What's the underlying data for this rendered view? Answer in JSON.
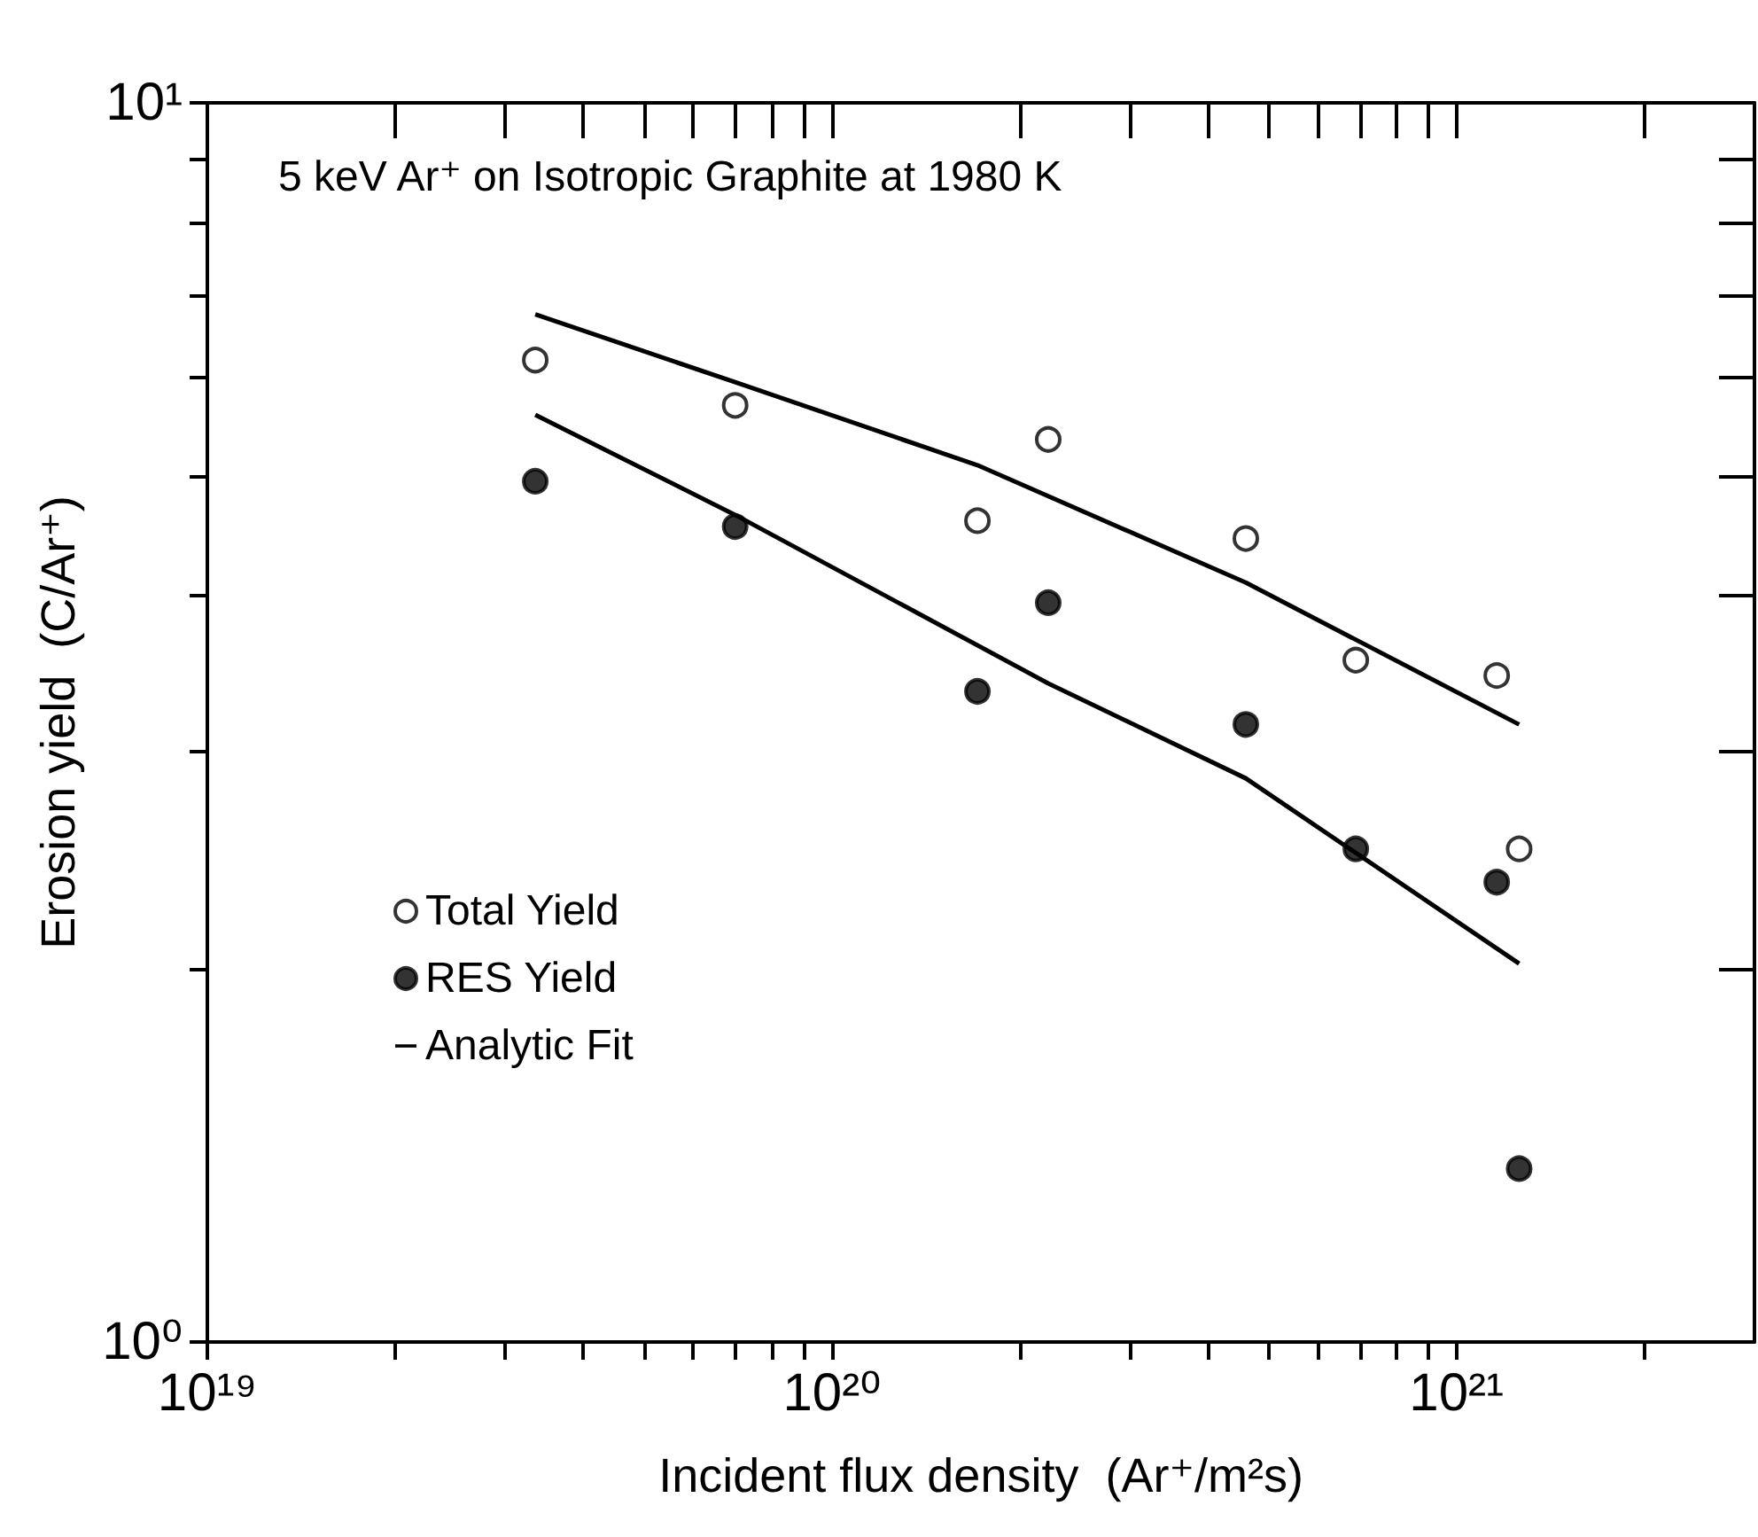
{
  "chart_data": {
    "type": "scatter",
    "xlabel": "Incident flux density  (Ar⁺/m²s)",
    "ylabel": "Erosion yield  (C/Ar⁺)",
    "annotations": [
      "5 keV Ar⁺ on Isotropic Graphite at 1980 K"
    ],
    "log": "xy",
    "xlim": [
      1e+19,
      3e+21
    ],
    "xticks": [
      {
        "value": 1e+19,
        "label": "10¹⁹"
      },
      {
        "value": 2e+19,
        "label": null
      },
      {
        "value": 3e+19,
        "label": null
      },
      {
        "value": 4e+19,
        "label": null
      },
      {
        "value": 5e+19,
        "label": null
      },
      {
        "value": 6e+19,
        "label": null
      },
      {
        "value": 7e+19,
        "label": null
      },
      {
        "value": 8e+19,
        "label": null
      },
      {
        "value": 9e+19,
        "label": null
      },
      {
        "value": 1e+20,
        "label": "10²⁰"
      },
      {
        "value": 2e+20,
        "label": null
      },
      {
        "value": 3e+20,
        "label": null
      },
      {
        "value": 4e+20,
        "label": null
      },
      {
        "value": 5e+20,
        "label": null
      },
      {
        "value": 6e+20,
        "label": null
      },
      {
        "value": 7e+20,
        "label": null
      },
      {
        "value": 8e+20,
        "label": null
      },
      {
        "value": 9e+20,
        "label": null
      },
      {
        "value": 1e+21,
        "label": "10²¹"
      },
      {
        "value": 2e+21,
        "label": null
      }
    ],
    "ylim": [
      1,
      10
    ],
    "yticks": [
      {
        "value": 1,
        "label": "10⁰"
      },
      {
        "value": 2,
        "label": null
      },
      {
        "value": 3,
        "label": null
      },
      {
        "value": 4,
        "label": null
      },
      {
        "value": 5,
        "label": null
      },
      {
        "value": 6,
        "label": null
      },
      {
        "value": 7,
        "label": null
      },
      {
        "value": 8,
        "label": null
      },
      {
        "value": 9,
        "label": null
      },
      {
        "value": 10,
        "label": "10¹"
      }
    ],
    "grid": false,
    "legend": "bottom left",
    "series": [
      {
        "name": "Total Yield",
        "marker": "circle",
        "color": "#ffffff",
        "x": [
          3.35e+19,
          7e+19,
          1.71e+20,
          2.22e+20,
          4.6e+20,
          6.9e+20,
          1.16e+21,
          1.26e+21
        ],
        "values": [
          6.2,
          5.7,
          4.6,
          5.35,
          4.45,
          3.55,
          3.45,
          2.5
        ]
      },
      {
        "name": "RES Yield",
        "marker": "circle",
        "color": "#000000",
        "x": [
          3.35e+19,
          7e+19,
          1.71e+20,
          2.22e+20,
          4.6e+20,
          6.9e+20,
          1.16e+21,
          1.26e+21
        ],
        "values": [
          4.95,
          4.55,
          3.35,
          3.95,
          3.15,
          2.5,
          2.35,
          1.38
        ]
      },
      {
        "name": "Analytic Fit",
        "type": "line",
        "marker": "none",
        "line_style": "solid",
        "color": "#000000",
        "x": [
          3.35e+19,
          7e+19,
          1.71e+20,
          4.6e+20,
          1.26e+21
        ],
        "values": [
          6.75,
          5.95,
          5.1,
          4.1,
          3.15
        ]
      },
      {
        "type": "line",
        "marker": "none",
        "line_style": "solid",
        "color": "#000000",
        "x": [
          3.35e+19,
          7e+19,
          2.22e+20,
          4.6e+20,
          1.26e+21
        ],
        "values": [
          5.6,
          4.65,
          3.4,
          2.85,
          2.02
        ]
      }
    ]
  }
}
